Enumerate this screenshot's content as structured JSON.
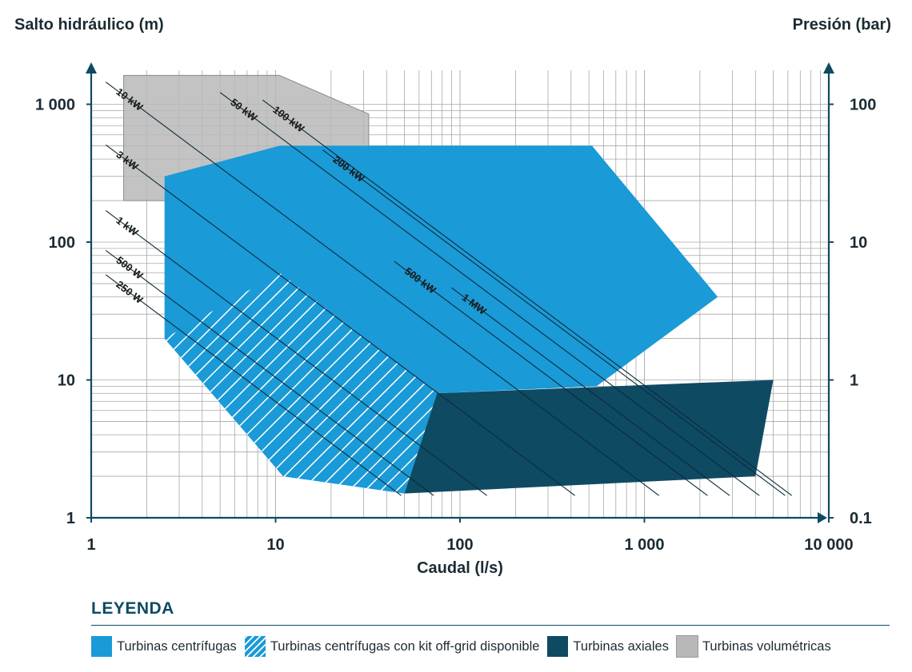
{
  "chart_data": {
    "type": "area",
    "xlabel": "Caudal (l/s)",
    "ylabel": "Salto hidráulico (m)",
    "ylabel_right": "Presión (bar)",
    "x_scale": "log",
    "y_scale": "log",
    "xlim": [
      1,
      10000
    ],
    "ylim": [
      1,
      2000
    ],
    "x_ticks": [
      1,
      10,
      100,
      1000,
      10000
    ],
    "x_tick_labels": [
      "1",
      "10",
      "100",
      "1 000",
      "10 000"
    ],
    "y_ticks": [
      1,
      10,
      100,
      1000
    ],
    "y_tick_labels": [
      "1",
      "10",
      "100",
      "1 000"
    ],
    "y_right_tick_labels": [
      "0.1",
      "1",
      "10",
      "100"
    ],
    "grid": true,
    "colors": {
      "centrifugas": "#1a9ad7",
      "axiales": "#0f4a63",
      "volumetricas": "#b8b8b8",
      "grid": "#a8a8a8",
      "axis": "#0f4a63",
      "power_lines": "#0b2b3a"
    },
    "regions": [
      {
        "name": "Turbinas volumétricas",
        "color": "#b8b8b8",
        "polygon": [
          [
            1.5,
            1620
          ],
          [
            10.5,
            1620
          ],
          [
            32,
            850
          ],
          [
            32,
            200
          ],
          [
            1.5,
            200
          ]
        ]
      },
      {
        "name": "Turbinas centrífugas",
        "color": "#1a9ad7",
        "polygon": [
          [
            2.5,
            300
          ],
          [
            10.5,
            500
          ],
          [
            520,
            500
          ],
          [
            2500,
            40
          ],
          [
            550,
            9
          ],
          [
            75,
            8
          ],
          [
            50,
            1.5
          ],
          [
            11,
            2
          ],
          [
            2.5,
            20
          ]
        ]
      },
      {
        "name": "Turbinas axiales",
        "color": "#0f4a63",
        "polygon": [
          [
            75,
            8
          ],
          [
            5000,
            10
          ],
          [
            4000,
            2
          ],
          [
            50,
            1.5
          ]
        ]
      },
      {
        "name": "Turbinas centrífugas con kit off-grid disponible",
        "color": "#1a9ad7",
        "hatch": true,
        "polygon": [
          [
            2.5,
            20
          ],
          [
            10.5,
            60
          ],
          [
            75,
            8
          ],
          [
            50,
            1.5
          ],
          [
            11,
            2
          ]
        ]
      }
    ],
    "power_lines": [
      {
        "label": "250 W",
        "x_start": 1.2,
        "x_end": 48
      },
      {
        "label": "500 W",
        "x_start": 1.2,
        "x_end": 72
      },
      {
        "label": "1 kW",
        "x_start": 1.2,
        "x_end": 140
      },
      {
        "label": "3 kW",
        "x_start": 1.2,
        "x_end": 420
      },
      {
        "label": "10 kW",
        "x_start": 1.2,
        "x_end": 1200
      },
      {
        "label": "50 kW",
        "x_start": 5.0,
        "x_end": 4200
      },
      {
        "label": "100 kW",
        "x_start": 8.5,
        "x_end": 6300
      },
      {
        "label": "200 kW",
        "x_start": 18,
        "x_end": 5800
      },
      {
        "label": "500 kW",
        "x_start": 44,
        "x_end": 2200
      },
      {
        "label": "1 MW",
        "x_start": 90,
        "x_end": 2900
      }
    ]
  },
  "legend": {
    "title": "LEYENDA",
    "items": [
      {
        "label": "Turbinas centrífugas",
        "color": "#1a9ad7",
        "style": "solid"
      },
      {
        "label": "Turbinas centrífugas con kit off-grid disponible",
        "color": "#1a9ad7",
        "style": "hatch"
      },
      {
        "label": "Turbinas axiales",
        "color": "#0f4a63",
        "style": "solid"
      },
      {
        "label": "Turbinas volumétricas",
        "color": "#b8b8b8",
        "style": "solid"
      }
    ]
  }
}
